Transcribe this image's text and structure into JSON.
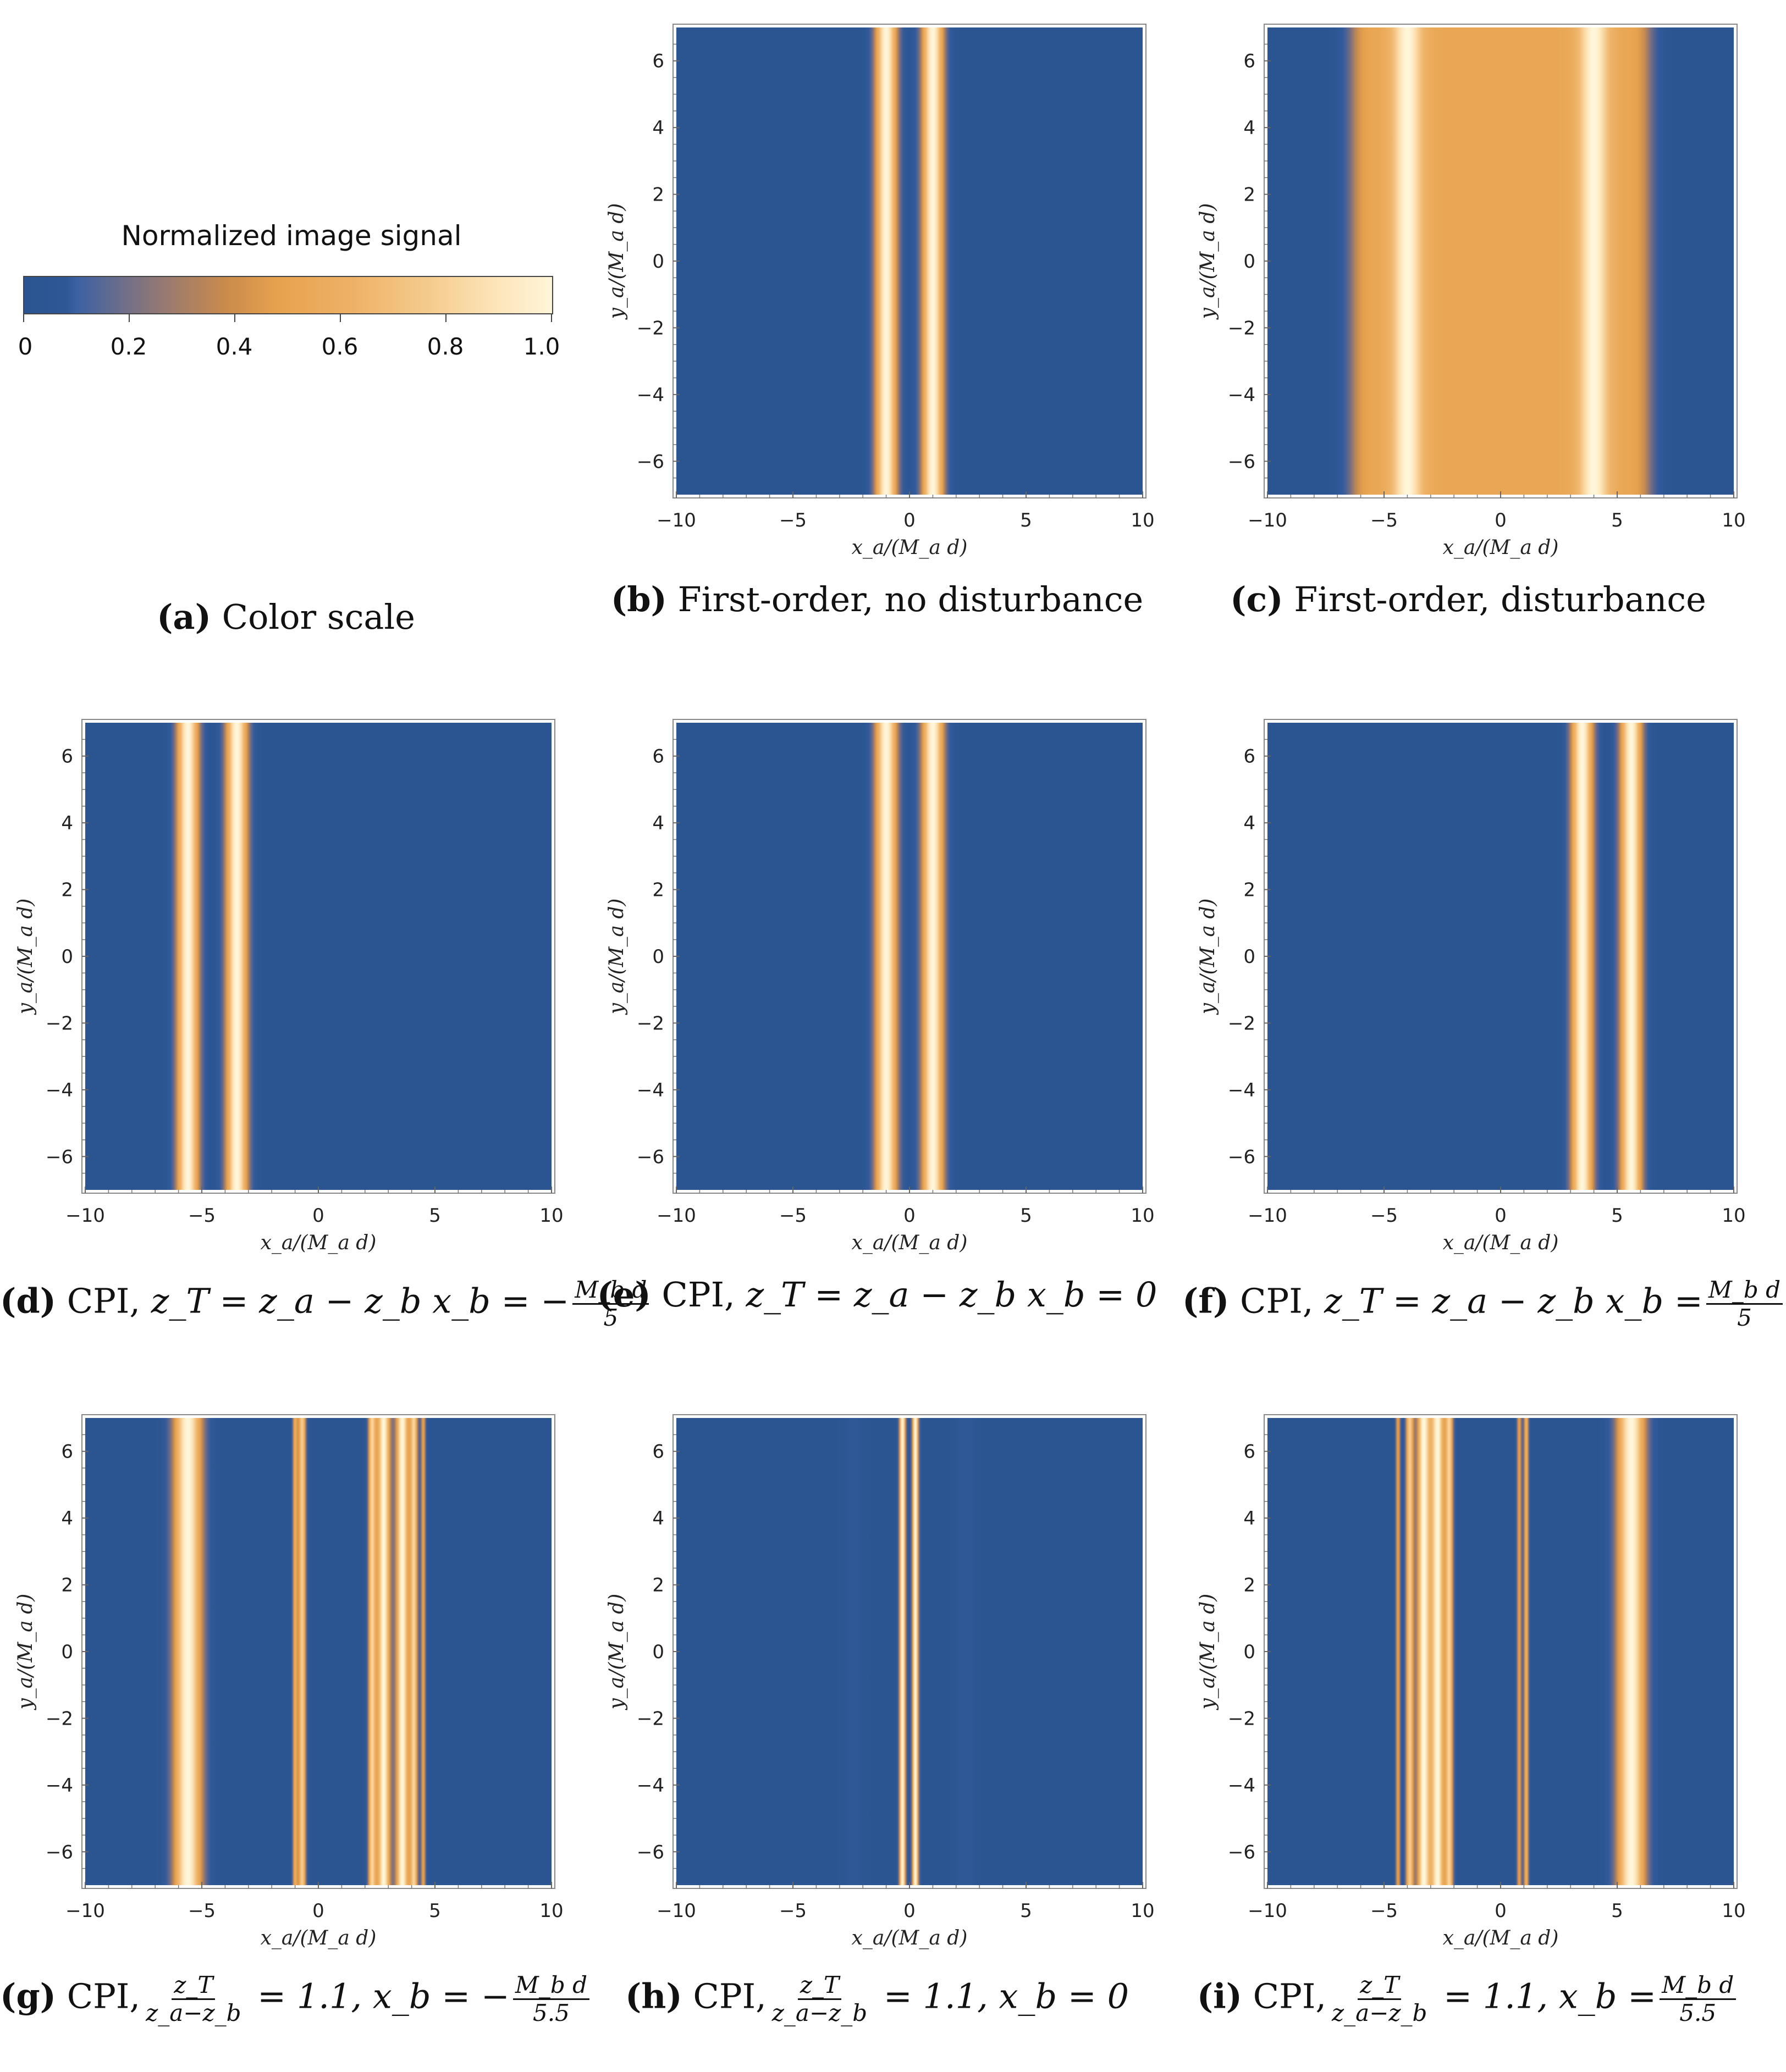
{
  "colorscale": {
    "title": "Normalized image signal",
    "ticks": [
      "0",
      "0.2",
      "0.4",
      "0.6",
      "0.8",
      "1.0"
    ],
    "tick_values": [
      0,
      0.2,
      0.4,
      0.6,
      0.8,
      1.0
    ],
    "colors": {
      "low": "#2a5590",
      "mid": "#e7a24e",
      "high": "#fff5d8"
    },
    "caption_tag": "(a)",
    "caption_text": "Color scale"
  },
  "axes": {
    "xlabel": "x_a/(M_a d)",
    "ylabel": "y_a/(M_a d)",
    "xlim": [
      -10,
      10
    ],
    "ylim": [
      -7,
      7
    ],
    "xticks": [
      -10,
      -5,
      0,
      5,
      10
    ],
    "xtick_labels": [
      "-10",
      "-5",
      "0",
      "5",
      "10"
    ],
    "yticks": [
      6,
      4,
      2,
      0,
      -2,
      -4,
      -6
    ],
    "ytick_labels": [
      "6",
      "4",
      "2",
      "0",
      "-2",
      "-4",
      "-6"
    ]
  },
  "chart_data": [
    {
      "id": "b",
      "type": "heatmap",
      "title": "First-order, no disturbance",
      "caption_tag": "(b)",
      "caption_text": "First-order, no disturbance",
      "background": 0.0,
      "profile": [
        {
          "center": -1.0,
          "width": 0.35,
          "amp": 1.0
        },
        {
          "center": 1.0,
          "width": 0.35,
          "amp": 1.0
        }
      ]
    },
    {
      "id": "c",
      "type": "heatmap",
      "title": "First-order, disturbance",
      "caption_tag": "(c)",
      "caption_text": "First-order, disturbance",
      "background": 0.0,
      "plateau": {
        "from": -6.4,
        "to": 6.4,
        "level": 0.55,
        "edge": 0.25
      },
      "profile": [
        {
          "center": -4.0,
          "width": 0.45,
          "amp": 0.45
        },
        {
          "center": 4.0,
          "width": 0.45,
          "amp": 0.45
        }
      ]
    },
    {
      "id": "d",
      "type": "heatmap",
      "title": "CPI, x_b = -M_b d/5",
      "caption_tag": "(d)",
      "caption_prefix": "CPI,",
      "caption_eq1": "z_T = z_a − z_b",
      "caption_eq2": "x_b =",
      "caption_sign": "−",
      "caption_frac_num": "M_b d",
      "caption_frac_den": "5",
      "background": 0.0,
      "profile": [
        {
          "center": -5.6,
          "width": 0.35,
          "amp": 1.0
        },
        {
          "center": -3.5,
          "width": 0.35,
          "amp": 1.0
        }
      ]
    },
    {
      "id": "e",
      "type": "heatmap",
      "title": "CPI, x_b = 0",
      "caption_tag": "(e)",
      "caption_prefix": "CPI,",
      "caption_eq1": "z_T = z_a − z_b",
      "caption_eq2": "x_b = 0",
      "background": 0.0,
      "profile": [
        {
          "center": -1.0,
          "width": 0.35,
          "amp": 1.0
        },
        {
          "center": 1.0,
          "width": 0.35,
          "amp": 1.0
        }
      ]
    },
    {
      "id": "f",
      "type": "heatmap",
      "title": "CPI, x_b = M_b d/5",
      "caption_tag": "(f)",
      "caption_prefix": "CPI,",
      "caption_eq1": "z_T = z_a − z_b",
      "caption_eq2": "x_b =",
      "caption_sign": "",
      "caption_frac_num": "M_b d",
      "caption_frac_den": "5",
      "background": 0.0,
      "profile": [
        {
          "center": 3.5,
          "width": 0.35,
          "amp": 1.0
        },
        {
          "center": 5.6,
          "width": 0.35,
          "amp": 1.0
        }
      ]
    },
    {
      "id": "g",
      "type": "heatmap",
      "title": "CPI, z_T/(z_a-z_b) = 1.1, x_b = -M_b d/5.5",
      "caption_tag": "(g)",
      "caption_prefix": "CPI,",
      "caption_ratio_num": "z_T",
      "caption_ratio_den": "z_a−z_b",
      "caption_eq1": "= 1.1,",
      "caption_eq2": "x_b =",
      "caption_sign": "−",
      "caption_frac_num": "M_b d",
      "caption_frac_den": "5.5",
      "background": 0.0,
      "profile": [
        {
          "center": -5.6,
          "width": 0.45,
          "amp": 1.0
        },
        {
          "center": -1.0,
          "width": 0.08,
          "amp": 0.55
        },
        {
          "center": -0.7,
          "width": 0.12,
          "amp": 0.8
        },
        {
          "center": 2.3,
          "width": 0.12,
          "amp": 0.8
        },
        {
          "center": 2.8,
          "width": 0.2,
          "amp": 1.0
        },
        {
          "center": 3.6,
          "width": 0.2,
          "amp": 1.0
        },
        {
          "center": 4.1,
          "width": 0.12,
          "amp": 0.8
        },
        {
          "center": 4.5,
          "width": 0.08,
          "amp": 0.5
        }
      ]
    },
    {
      "id": "h",
      "type": "heatmap",
      "title": "CPI, z_T/(z_a-z_b) = 1.1, x_b = 0",
      "caption_tag": "(h)",
      "caption_prefix": "CPI,",
      "caption_ratio_num": "z_T",
      "caption_ratio_den": "z_a−z_b",
      "caption_eq1": "= 1.1,",
      "caption_eq2": "x_b = 0",
      "background": 0.0,
      "profile": [
        {
          "center": -2.4,
          "width": 0.35,
          "amp": 0.06
        },
        {
          "center": 2.4,
          "width": 0.35,
          "amp": 0.06
        },
        {
          "center": -0.3,
          "width": 0.1,
          "amp": 1.0
        },
        {
          "center": 0.25,
          "width": 0.1,
          "amp": 1.0
        }
      ]
    },
    {
      "id": "i",
      "type": "heatmap",
      "title": "CPI, z_T/(z_a-z_b) = 1.1, x_b = M_b d/5.5",
      "caption_tag": "(i)",
      "caption_prefix": "CPI,",
      "caption_ratio_num": "z_T",
      "caption_ratio_den": "z_a−z_b",
      "caption_eq1": "= 1.1,",
      "caption_eq2": "x_b =",
      "caption_sign": "",
      "caption_frac_num": "M_b d",
      "caption_frac_den": "5.5",
      "background": 0.0,
      "profile": [
        {
          "center": -4.4,
          "width": 0.08,
          "amp": 0.5
        },
        {
          "center": -3.9,
          "width": 0.12,
          "amp": 0.8
        },
        {
          "center": -3.3,
          "width": 0.2,
          "amp": 1.0
        },
        {
          "center": -2.7,
          "width": 0.2,
          "amp": 1.0
        },
        {
          "center": -2.2,
          "width": 0.12,
          "amp": 0.8
        },
        {
          "center": 0.8,
          "width": 0.08,
          "amp": 0.5
        },
        {
          "center": 1.1,
          "width": 0.08,
          "amp": 0.6
        },
        {
          "center": 5.6,
          "width": 0.45,
          "amp": 1.0
        }
      ]
    }
  ]
}
